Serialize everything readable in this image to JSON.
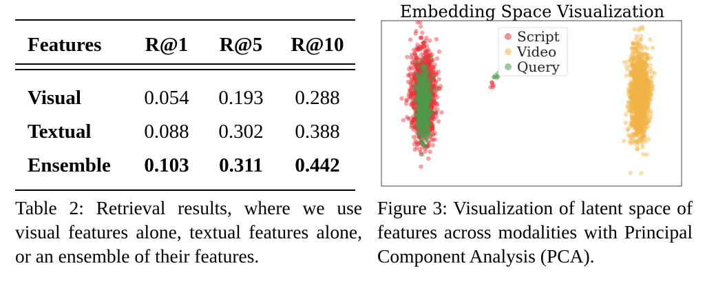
{
  "table": {
    "headers": [
      "Features",
      "R@1",
      "R@5",
      "R@10"
    ],
    "rows": [
      {
        "label": "Visual",
        "values": [
          "0.054",
          "0.193",
          "0.288"
        ],
        "bold": false
      },
      {
        "label": "Textual",
        "values": [
          "0.088",
          "0.302",
          "0.388"
        ],
        "bold": false
      },
      {
        "label": "Ensemble",
        "values": [
          "0.103",
          "0.311",
          "0.442"
        ],
        "bold": true
      }
    ],
    "caption": "Table 2: Retrieval results, where we use visual features alone, textual features alone, or an ensemble of their features."
  },
  "figure": {
    "caption": "Figure 3: Visualization of latent space of features across modalities with Principal Component Analysis (PCA)."
  },
  "chart_data": {
    "type": "scatter",
    "title": "Embedding Space Visualization",
    "xlabel": "",
    "ylabel": "",
    "axes_ticks": false,
    "legend_position": "top-center",
    "series": [
      {
        "name": "Script",
        "color": "#e8333a",
        "clusters": [
          {
            "center": [
              0.14,
              0.45
            ],
            "spread": [
              0.035,
              0.24
            ],
            "count": 1400
          },
          {
            "center": [
              0.37,
              0.4
            ],
            "spread": [
              0.012,
              0.04
            ],
            "count": 6
          }
        ]
      },
      {
        "name": "Video",
        "color": "#f2b347",
        "clusters": [
          {
            "center": [
              0.86,
              0.45
            ],
            "spread": [
              0.028,
              0.24
            ],
            "count": 1400
          }
        ]
      },
      {
        "name": "Query",
        "color": "#4f9a4c",
        "clusters": [
          {
            "center": [
              0.14,
              0.5
            ],
            "spread": [
              0.018,
              0.17
            ],
            "count": 700
          },
          {
            "center": [
              0.38,
              0.33
            ],
            "spread": [
              0.012,
              0.015
            ],
            "count": 7
          }
        ]
      }
    ]
  }
}
